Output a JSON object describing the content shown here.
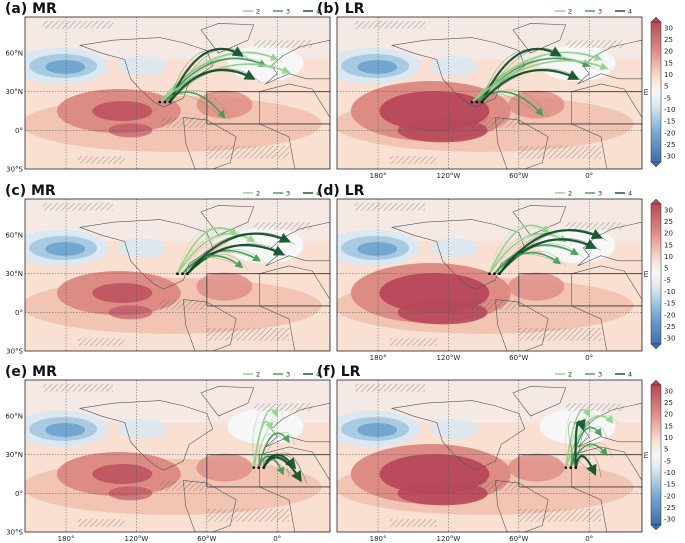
{
  "chart_data": [
    {
      "type": "heatmap",
      "title": "(a) MR",
      "legend": [
        "2",
        "3",
        "4"
      ],
      "lat_ticks": [
        "60°N",
        "30°N",
        "0°",
        "30°S"
      ],
      "lon_ticks": [],
      "source": [
        -100,
        22
      ],
      "targets": [
        [
          0,
          55
        ],
        [
          -10,
          50
        ],
        [
          -30,
          58
        ],
        [
          10,
          45
        ],
        [
          -45,
          10
        ],
        [
          -20,
          40
        ]
      ]
    },
    {
      "type": "heatmap",
      "title": "(b) LR",
      "legend": [
        "2",
        "3",
        "4"
      ],
      "lat_ticks": [],
      "lon_ticks": [
        "180°",
        "120°W",
        "60°W",
        "0°"
      ],
      "source": [
        -100,
        22
      ],
      "targets": [
        [
          10,
          55
        ],
        [
          0,
          50
        ],
        [
          -25,
          58
        ],
        [
          15,
          48
        ],
        [
          -40,
          12
        ],
        [
          -10,
          40
        ]
      ]
    },
    {
      "type": "heatmap",
      "title": "(c) MR",
      "legend": [
        "2",
        "3",
        "4"
      ],
      "lat_ticks": [
        "60°N",
        "30°N",
        "0°",
        "30°S"
      ],
      "lon_ticks": [],
      "source": [
        -85,
        30
      ],
      "targets": [
        [
          -20,
          55
        ],
        [
          -15,
          40
        ],
        [
          5,
          45
        ],
        [
          -35,
          60
        ],
        [
          -30,
          35
        ],
        [
          10,
          55
        ]
      ]
    },
    {
      "type": "heatmap",
      "title": "(d) LR",
      "legend": [
        "2",
        "3",
        "4"
      ],
      "lat_ticks": [],
      "lon_ticks": [
        "180°",
        "120°W",
        "60°W",
        "0°"
      ],
      "source": [
        -85,
        30
      ],
      "targets": [
        [
          -20,
          55
        ],
        [
          -10,
          45
        ],
        [
          5,
          50
        ],
        [
          -35,
          62
        ],
        [
          -25,
          38
        ],
        [
          10,
          58
        ]
      ]
    },
    {
      "type": "heatmap",
      "title": "(e) MR",
      "legend": [
        "2",
        "3",
        "4"
      ],
      "lat_ticks": [
        "60°N",
        "30°N",
        "0°",
        "30°S"
      ],
      "lon_ticks": [
        "180°",
        "120°W",
        "60°W",
        "0°"
      ],
      "source": [
        -20,
        20
      ],
      "targets": [
        [
          0,
          60
        ],
        [
          5,
          15
        ],
        [
          15,
          20
        ],
        [
          -5,
          50
        ],
        [
          10,
          40
        ],
        [
          20,
          10
        ]
      ]
    },
    {
      "type": "heatmap",
      "title": "(f) LR",
      "legend": [
        "2",
        "3",
        "4"
      ],
      "lat_ticks": [],
      "lon_ticks": [
        "180°",
        "120°W",
        "60°W",
        "0°"
      ],
      "source": [
        -20,
        20
      ],
      "targets": [
        [
          0,
          60
        ],
        [
          10,
          45
        ],
        [
          5,
          15
        ],
        [
          20,
          55
        ],
        [
          15,
          30
        ],
        [
          -5,
          50
        ]
      ]
    }
  ],
  "colorbar": {
    "levels": [
      "30",
      "25",
      "20",
      "15",
      "10",
      "5",
      "-5",
      "-10",
      "-15",
      "-20",
      "-25",
      "-30"
    ],
    "unit": "m"
  },
  "colors": {
    "red_dark": "#b7485a",
    "red_mid": "#dc8c84",
    "red_light": "#f2c4b3",
    "red_pale": "#f9e0d3",
    "white": "#f7f7f7",
    "blue_pale": "#dbe8f1",
    "blue_light": "#a8cbe2",
    "blue_mid": "#74a7cf",
    "blue_dark": "#4a83b8",
    "green_2": "#8fd18a",
    "green_3": "#3d9a52",
    "green_4": "#0d4d25"
  }
}
